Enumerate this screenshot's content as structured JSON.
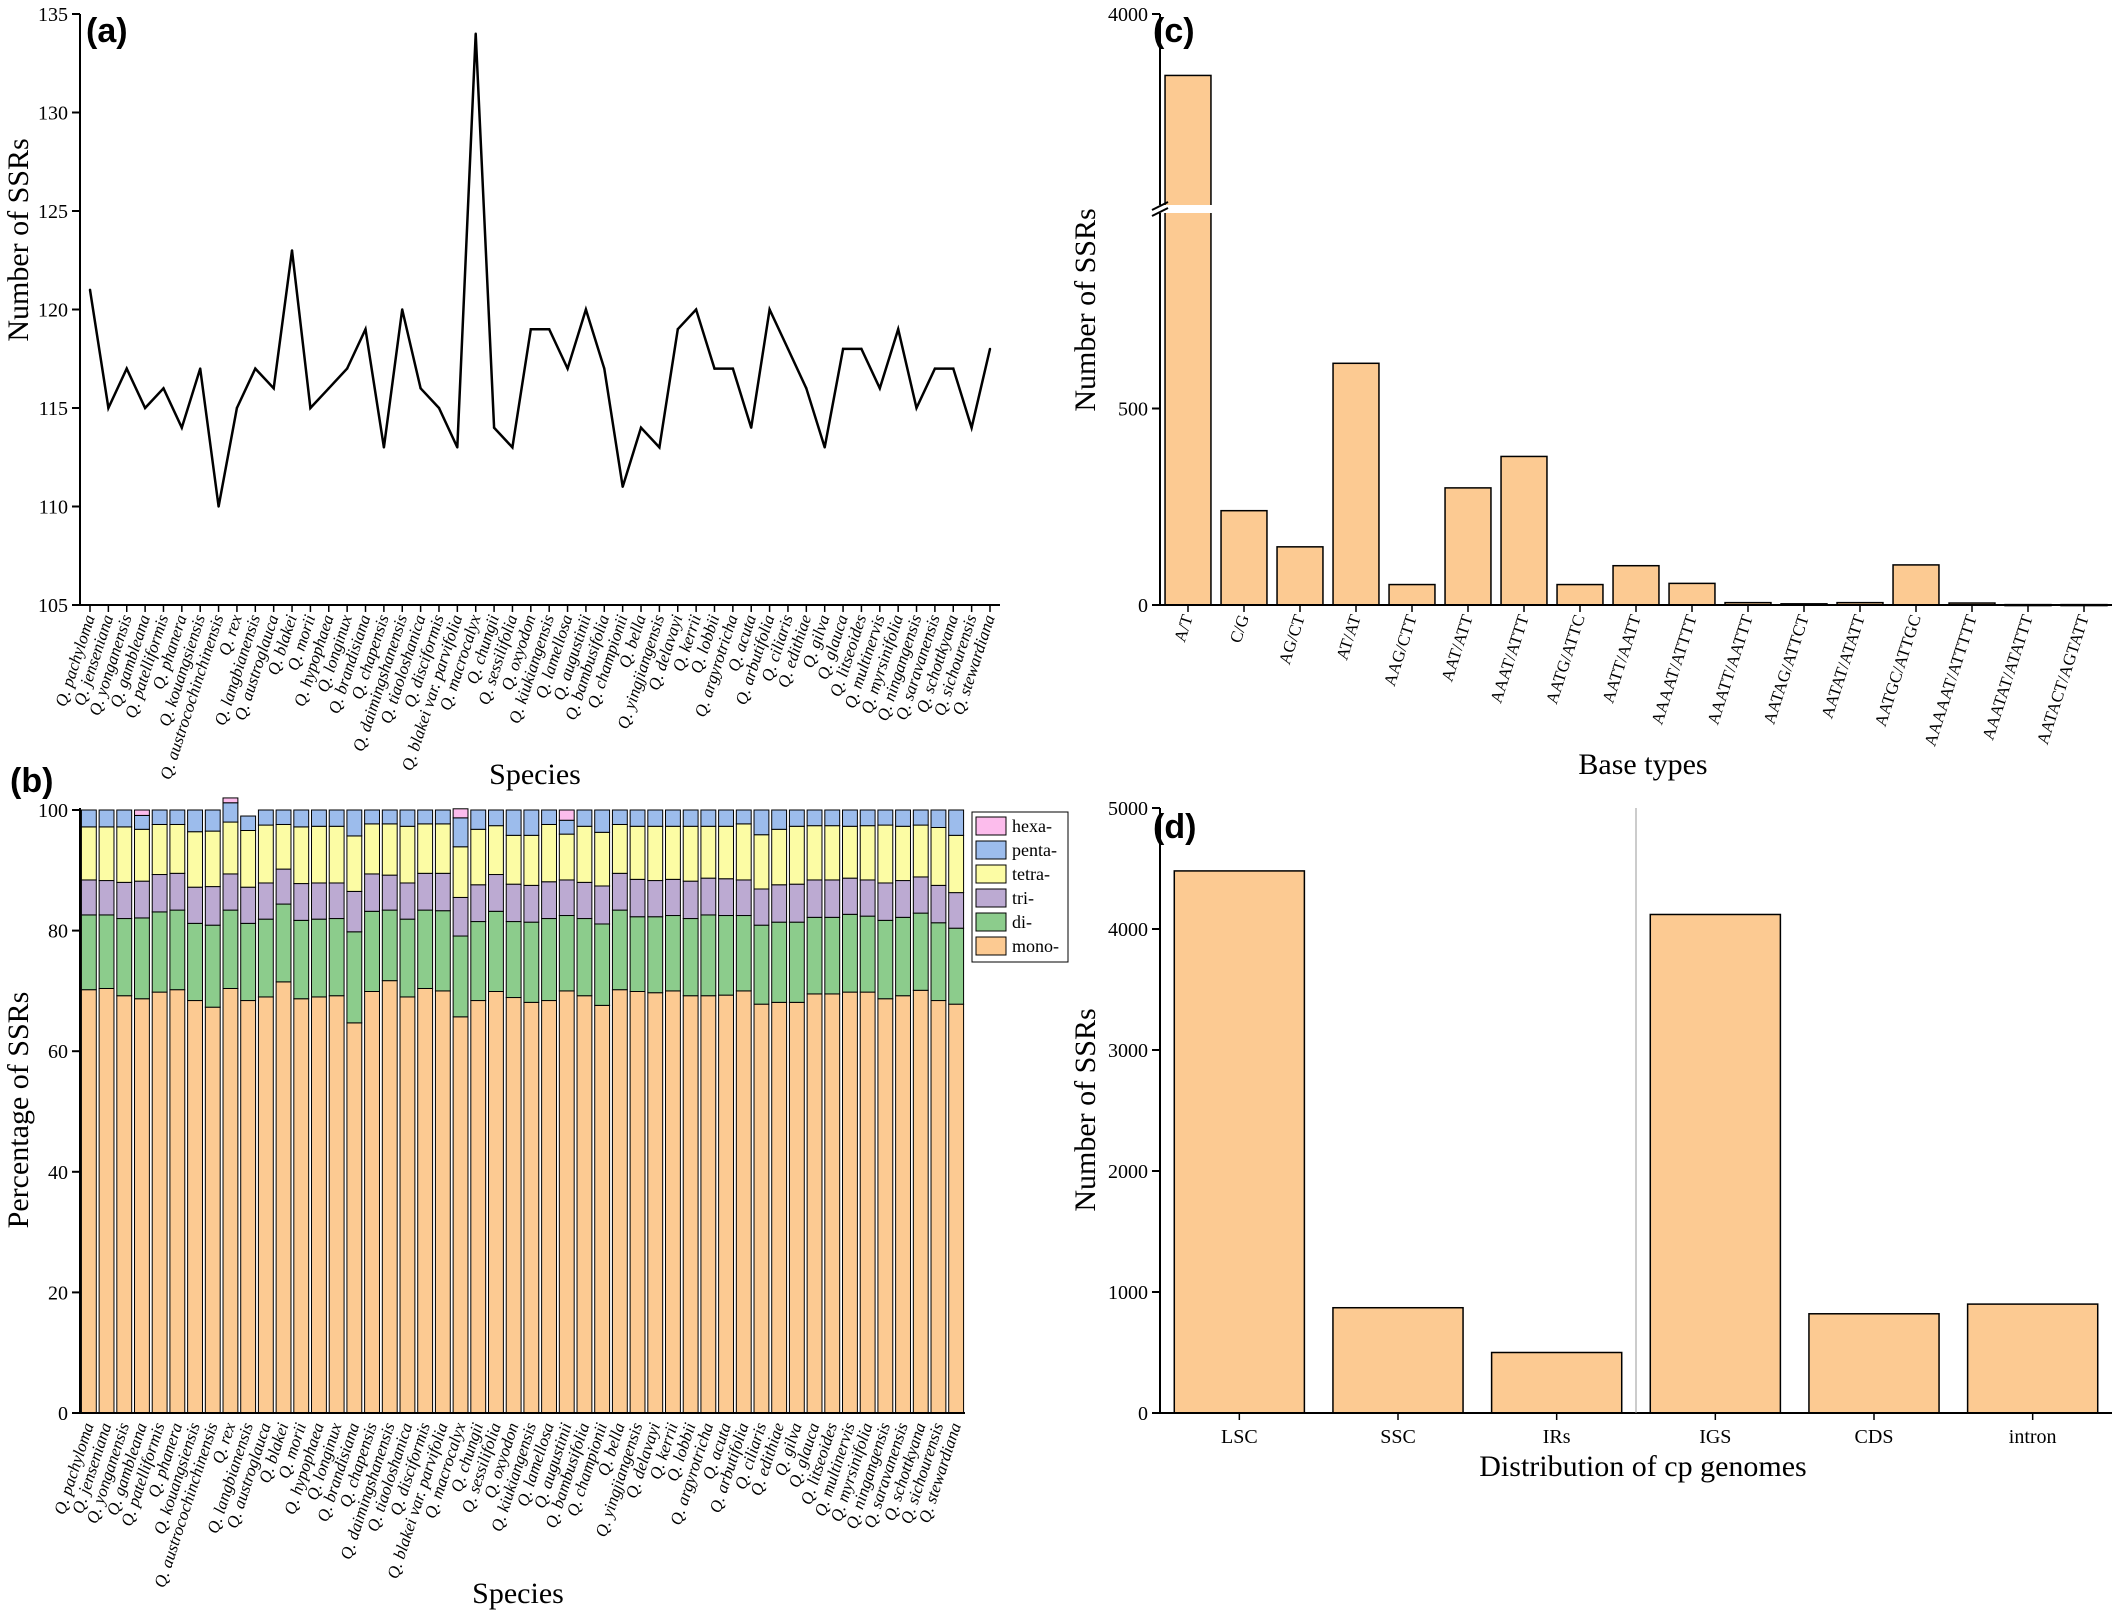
{
  "species": [
    "Q. pachyloma",
    "Q. jenseniana",
    "Q. yonganensis",
    "Q. gambleana",
    "Q. patelliformis",
    "Q. phanera",
    "Q. kouangsiensis",
    "Q. austrocochinchinensis",
    "Q. rex",
    "Q. langbianensis",
    "Q. austroglauca",
    "Q. blakei",
    "Q. morii",
    "Q. hypophaea",
    "Q. longinux",
    "Q. brandisiana",
    "Q. chapensis",
    "Q. daimingshanensis",
    "Q. tiaoloshanica",
    "Q. disciformis",
    "Q. blakei var. parvifolia",
    "Q. macrocalyx",
    "Q. chungii",
    "Q. sessilifolia",
    "Q. oxyodon",
    "Q. kiukiangensis",
    "Q. lamellosa",
    "Q. augustinii",
    "Q. bambusifolia",
    "Q. championii",
    "Q. bella",
    "Q. yingjiangensis",
    "Q. delavayi",
    "Q. kerrii",
    "Q. lobbii",
    "Q. argyrotricha",
    "Q. acuta",
    "Q. arbutifolia",
    "Q. ciliaris",
    "Q. edithiae",
    "Q. gilva",
    "Q. glauca",
    "Q. litseoides",
    "Q. multinervis",
    "Q. myrsinifolia",
    "Q. ningangensis",
    "Q. saravanensis",
    "Q. schottkyana",
    "Q. sichourensis",
    "Q. stewardiana"
  ],
  "chart_data": [
    {
      "panel": "(a)",
      "type": "line",
      "xlabel": "Species",
      "ylabel": "Number of SSRs",
      "ylim": [
        105,
        135
      ],
      "yticks": [
        105,
        110,
        115,
        120,
        125,
        130,
        135
      ],
      "values": [
        121,
        115,
        117,
        115,
        116,
        114,
        117,
        110,
        115,
        117,
        116,
        123,
        115,
        116,
        117,
        119,
        113,
        120,
        116,
        115,
        113,
        134,
        114,
        113,
        119,
        119,
        117,
        120,
        117,
        111,
        114,
        113,
        119,
        120,
        117,
        117,
        114,
        120,
        118,
        116,
        113,
        118,
        118,
        116,
        119,
        115,
        117,
        117,
        114,
        118
      ]
    },
    {
      "panel": "(b)",
      "type": "bar",
      "stacked": true,
      "xlabel": "Species",
      "ylabel": "Percentage of SSRs",
      "ylim": [
        0,
        100
      ],
      "yticks": [
        0,
        20,
        40,
        60,
        80,
        100
      ],
      "legend_position": "top-right",
      "series": [
        {
          "name": "mono-",
          "color": "#fcca92",
          "values": [
            70.2,
            70.4,
            69.2,
            68.7,
            69.8,
            70.2,
            68.4,
            67.3,
            70.4,
            68.4,
            69.0,
            71.5,
            68.7,
            69.0,
            69.2,
            64.7,
            69.9,
            71.7,
            69.0,
            70.4,
            70.0,
            65.7,
            68.4,
            69.9,
            68.9,
            68.1,
            68.4,
            70.0,
            69.2,
            67.6,
            70.2,
            69.9,
            69.7,
            70.0,
            69.2,
            69.2,
            69.3,
            70.0,
            67.8,
            68.1,
            68.1,
            69.5,
            69.5,
            69.8,
            69.8,
            68.7,
            69.2,
            70.1,
            68.4,
            67.8
          ]
        },
        {
          "name": "di-",
          "color": "#8ccc8c",
          "values": [
            12.4,
            12.2,
            12.8,
            13.4,
            13.3,
            13.2,
            12.8,
            13.6,
            13.0,
            12.8,
            12.9,
            12.9,
            13.0,
            12.9,
            12.8,
            15.1,
            13.3,
            11.7,
            12.9,
            13.0,
            13.3,
            13.4,
            13.1,
            13.3,
            12.6,
            13.3,
            13.6,
            12.5,
            12.8,
            13.5,
            13.2,
            12.4,
            12.6,
            12.5,
            12.8,
            13.4,
            13.2,
            12.5,
            13.1,
            13.3,
            13.3,
            12.7,
            12.7,
            12.9,
            12.6,
            13.0,
            13.0,
            12.8,
            12.9,
            12.6
          ]
        },
        {
          "name": "tri-",
          "color": "#bcaad2",
          "values": [
            5.8,
            5.7,
            6.0,
            6.1,
            6.2,
            6.1,
            6.0,
            6.4,
            6.0,
            6.0,
            6.0,
            5.8,
            6.1,
            6.0,
            5.9,
            6.7,
            6.2,
            5.8,
            6.0,
            6.1,
            6.2,
            6.4,
            6.1,
            6.1,
            6.2,
            6.1,
            6.1,
            5.9,
            6.0,
            6.3,
            6.1,
            6.2,
            6.0,
            6.0,
            6.2,
            6.1,
            6.1,
            5.9,
            6.0,
            6.2,
            6.3,
            6.2,
            6.2,
            6.0,
            6.0,
            6.2,
            6.1,
            6.0,
            6.2,
            5.9
          ]
        },
        {
          "name": "tetra-",
          "color": "#fcfca4",
          "values": [
            8.8,
            8.9,
            9.2,
            8.6,
            8.3,
            8.1,
            9.2,
            9.2,
            8.6,
            9.4,
            9.6,
            7.4,
            9.4,
            9.4,
            9.4,
            9.2,
            8.3,
            8.5,
            9.4,
            8.2,
            8.2,
            8.4,
            9.2,
            8.1,
            8.1,
            8.3,
            9.5,
            7.6,
            9.3,
            8.9,
            8.1,
            8.8,
            9.0,
            8.8,
            9.1,
            8.6,
            8.7,
            9.3,
            9.0,
            9.2,
            9.6,
            9.0,
            9.0,
            8.6,
            9.0,
            9.6,
            9.0,
            8.6,
            9.6,
            9.5
          ]
        },
        {
          "name": "penta-",
          "color": "#9cbcec",
          "values": [
            2.8,
            2.8,
            2.8,
            2.3,
            2.4,
            2.4,
            3.6,
            3.5,
            3.2,
            2.4,
            2.5,
            2.4,
            2.8,
            2.7,
            2.7,
            4.3,
            2.3,
            2.3,
            2.7,
            2.3,
            2.3,
            4.8,
            3.2,
            2.6,
            4.2,
            4.2,
            2.4,
            2.3,
            2.7,
            3.7,
            2.4,
            2.7,
            2.7,
            2.7,
            2.7,
            2.7,
            2.7,
            2.3,
            4.1,
            3.2,
            2.7,
            2.6,
            2.6,
            2.7,
            2.6,
            2.5,
            2.7,
            2.5,
            2.9,
            4.2
          ]
        },
        {
          "name": "hexa-",
          "color": "#fcbcec",
          "values": [
            0,
            0,
            0,
            0.9,
            0,
            0,
            0,
            0,
            0.8,
            0,
            0,
            0,
            0,
            0,
            0,
            0,
            0,
            0,
            0,
            0,
            0,
            1.5,
            0,
            0,
            0,
            0,
            0,
            1.7,
            0,
            0,
            0,
            0,
            0,
            0,
            0,
            0,
            0,
            0,
            0,
            0,
            0,
            0,
            0,
            0,
            0,
            0,
            0,
            0,
            0,
            0
          ]
        }
      ]
    },
    {
      "panel": "(c)",
      "type": "bar",
      "xlabel": "Base types",
      "ylabel": "Number of SSRs",
      "axis_break": true,
      "lower_ylim": [
        0,
        1000
      ],
      "lower_yticks": [
        0,
        500
      ],
      "upper_ylim": [
        3000,
        4000
      ],
      "upper_yticks": [
        4000
      ],
      "bar_color": "#fcca92",
      "categories": [
        "A/T",
        "C/G",
        "AG/CT",
        "AT/AT",
        "AAG/CTT",
        "AAT/ATT",
        "AAAT/ATTT",
        "AATG/ATTC",
        "AATT/AATT",
        "AAAAT/ATTTT",
        "AAATT/AATTT",
        "AATAG/ATTCT",
        "AATAT/ATATT",
        "AATGC/ATTGC",
        "AAAAAT/ATTTTT",
        "AAATAT/ATATTT",
        "AATACT/AGTATT"
      ],
      "values": [
        3680,
        240,
        148,
        615,
        52,
        298,
        378,
        52,
        100,
        55,
        6,
        3,
        6,
        102,
        5,
        1,
        1
      ]
    },
    {
      "panel": "(d)",
      "type": "bar",
      "xlabel": "Distribution of cp genomes",
      "ylabel": "Number of SSRs",
      "ylim": [
        0,
        5000
      ],
      "yticks": [
        0,
        1000,
        2000,
        3000,
        4000,
        5000
      ],
      "bar_color": "#fcca92",
      "categories": [
        "LSC",
        "SSC",
        "IRs",
        "IGS",
        "CDS",
        "intron"
      ],
      "values": [
        4480,
        870,
        500,
        4120,
        820,
        900
      ]
    }
  ]
}
